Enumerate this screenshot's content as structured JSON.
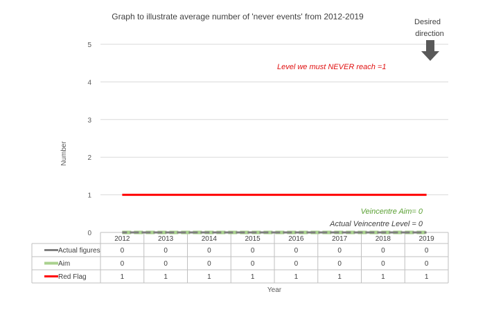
{
  "chart_data": {
    "type": "line",
    "title": "Graph to illustrate average number of 'never events' from 2012-2019",
    "xlabel": "Year",
    "ylabel": "Number",
    "ylim": [
      0,
      5
    ],
    "yticks": [
      "0",
      "1",
      "2",
      "3",
      "4",
      "5"
    ],
    "categories": [
      "2012",
      "2013",
      "2014",
      "2015",
      "2016",
      "2017",
      "2018",
      "2019"
    ],
    "series": [
      {
        "name": "Actual figures",
        "values": [
          0,
          0,
          0,
          0,
          0,
          0,
          0,
          0
        ],
        "color": "#7f7f7f"
      },
      {
        "name": "Aim",
        "values": [
          0,
          0,
          0,
          0,
          0,
          0,
          0,
          0
        ],
        "color": "#a9d18e"
      },
      {
        "name": "Red Flag",
        "values": [
          1,
          1,
          1,
          1,
          1,
          1,
          1,
          1
        ],
        "color": "#ff0000"
      }
    ],
    "annotations": {
      "red_flag": "Level we must NEVER reach =1",
      "aim": "Veincentre Aim= 0",
      "actual": "Actual Veincentre Level = 0",
      "direction_line1": "Desired",
      "direction_line2": "direction"
    },
    "grid": true,
    "legend": "data-table"
  },
  "colors": {
    "grid": "#d9d9d9",
    "arrow": "#595959",
    "table_border": "#bfbfbf"
  }
}
